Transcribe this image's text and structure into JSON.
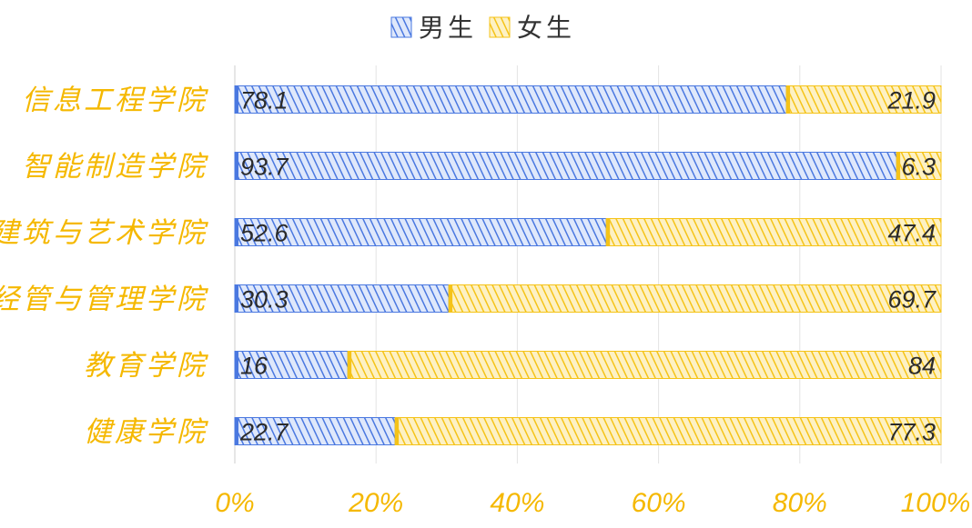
{
  "chart_data": {
    "type": "bar",
    "orientation": "horizontal",
    "stacked": "percent",
    "categories": [
      "信息工程学院",
      "智能制造学院",
      "建筑与艺术学院",
      "经管与管理学院",
      "教育学院",
      "健康学院"
    ],
    "series": [
      {
        "name": "男生",
        "values": [
          78.1,
          93.7,
          52.6,
          30.3,
          16,
          22.7
        ],
        "color": "#4a78e0"
      },
      {
        "name": "女生",
        "values": [
          21.9,
          6.3,
          47.4,
          69.7,
          84,
          77.3
        ],
        "color": "#f5c318"
      }
    ],
    "xlim": [
      0,
      100
    ],
    "xticks": [
      "0%",
      "20%",
      "40%",
      "60%",
      "80%",
      "100%"
    ],
    "grid": true,
    "legend_position": "top-center",
    "label_color": "#f5b800",
    "value_label_color": "#2b2b2b"
  }
}
